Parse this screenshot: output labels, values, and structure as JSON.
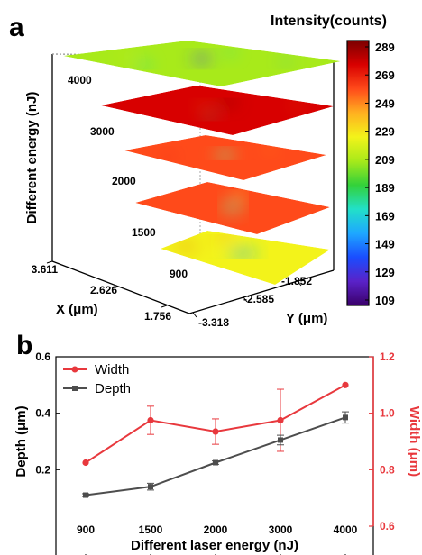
{
  "chart_data": [
    {
      "type": "heatmap",
      "panel_label": "a",
      "colorbar_title": "Intensity(counts)",
      "colorbar_ticks": [
        "289",
        "269",
        "249",
        "229",
        "209",
        "189",
        "169",
        "149",
        "129",
        "109"
      ],
      "colorbar_range": [
        109,
        289
      ],
      "zlabel": "Different energy (nJ)",
      "xlabel": "X (μm)",
      "ylabel": "Y (μm)",
      "layers": [
        "4000",
        "3000",
        "2000",
        "1500",
        "900"
      ],
      "x_ticks": [
        "3.611",
        "2.626",
        "1.756"
      ],
      "y_ticks": [
        "-1.852",
        "-2.585",
        "-3.318"
      ],
      "colors": [
        "#3a006a",
        "#5a22c8",
        "#1a4dff",
        "#1ea8ff",
        "#22e0c8",
        "#33d13a",
        "#a8ea1a",
        "#f3f31a",
        "#ffb020",
        "#ff4a1a",
        "#d80000",
        "#7a0000"
      ]
    },
    {
      "type": "line",
      "panel_label": "b",
      "categories": [
        "900",
        "1500",
        "2000",
        "3000",
        "4000"
      ],
      "xlabel": "Different laser energy (nJ)",
      "ylabel_left": "Depth (μm)",
      "ylabel_right": "Width (μm)",
      "ylim_left": [
        0.0,
        0.6
      ],
      "ylim_right": [
        0.6,
        1.2
      ],
      "yticks_left": [
        "0.2",
        "0.4",
        "0.6"
      ],
      "yticks_right": [
        "0.6",
        "0.8",
        "1.0",
        "1.2"
      ],
      "legend_position": "top-left",
      "series": [
        {
          "name": "Width",
          "axis": "right",
          "color": "#e8383d",
          "marker": "circle",
          "values": [
            0.825,
            0.975,
            0.935,
            0.975,
            1.1
          ],
          "errors": [
            0,
            0.05,
            0.045,
            0.11,
            0
          ]
        },
        {
          "name": "Depth",
          "axis": "left",
          "color": "#4d4d4d",
          "marker": "square",
          "values": [
            0.11,
            0.14,
            0.225,
            0.305,
            0.385
          ],
          "errors": [
            0.005,
            0.012,
            0.006,
            0.017,
            0.02
          ]
        }
      ]
    }
  ]
}
